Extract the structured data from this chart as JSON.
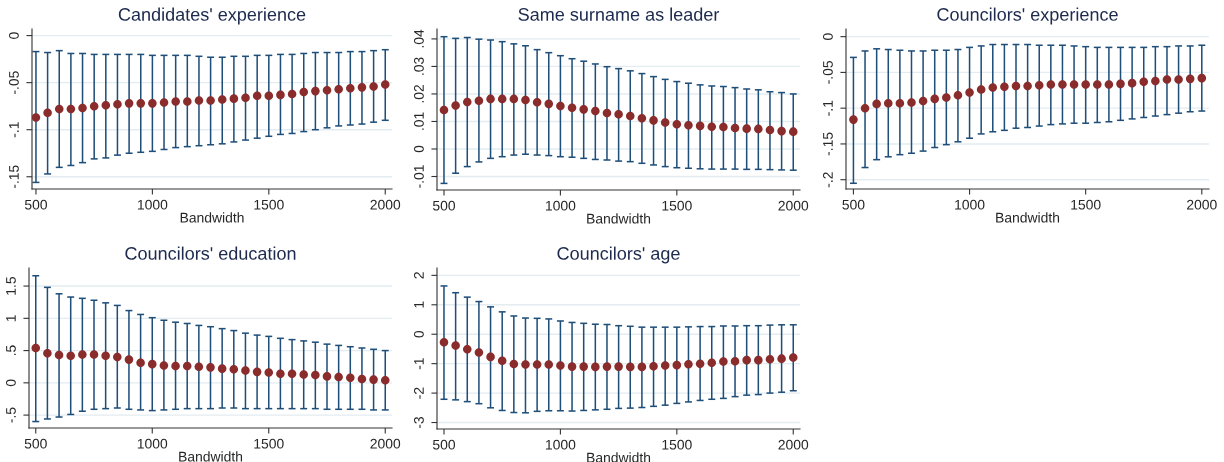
{
  "chart_data": [
    {
      "type": "scatter",
      "title": "Candidates' experience",
      "xlabel": "Bandwidth",
      "xlim": [
        483,
        2029
      ],
      "xticks": [
        500,
        1000,
        1500,
        2000
      ],
      "ylim": [
        -0.163,
        0.007
      ],
      "yticks": [
        {
          "value": -0.15,
          "label": "-.15"
        },
        {
          "value": -0.1,
          "label": "-.1"
        },
        {
          "value": -0.05,
          "label": "-.05"
        },
        0
      ],
      "grid": "y",
      "marker": "circle",
      "x": [
        500,
        550,
        600,
        650,
        700,
        750,
        800,
        850,
        900,
        950,
        1000,
        1050,
        1100,
        1150,
        1200,
        1250,
        1300,
        1350,
        1400,
        1450,
        1500,
        1550,
        1600,
        1650,
        1700,
        1750,
        1800,
        1850,
        1900,
        1950,
        2000
      ],
      "series": [
        {
          "color": "#8b2c2c",
          "values": [
            -0.087,
            -0.082,
            -0.078,
            -0.078,
            -0.077,
            -0.075,
            -0.074,
            -0.073,
            -0.072,
            -0.072,
            -0.072,
            -0.071,
            -0.07,
            -0.07,
            -0.069,
            -0.069,
            -0.068,
            -0.067,
            -0.066,
            -0.064,
            -0.064,
            -0.063,
            -0.062,
            -0.06,
            -0.059,
            -0.058,
            -0.057,
            -0.056,
            -0.055,
            -0.054,
            -0.052
          ],
          "errors": [
            [
              -0.156,
              -0.017
            ],
            [
              -0.147,
              -0.018
            ],
            [
              -0.14,
              -0.016
            ],
            [
              -0.138,
              -0.019
            ],
            [
              -0.135,
              -0.019
            ],
            [
              -0.131,
              -0.02
            ],
            [
              -0.13,
              -0.02
            ],
            [
              -0.127,
              -0.02
            ],
            [
              -0.125,
              -0.02
            ],
            [
              -0.124,
              -0.02
            ],
            [
              -0.123,
              -0.021
            ],
            [
              -0.121,
              -0.021
            ],
            [
              -0.119,
              -0.021
            ],
            [
              -0.118,
              -0.021
            ],
            [
              -0.117,
              -0.022
            ],
            [
              -0.116,
              -0.023
            ],
            [
              -0.115,
              -0.023
            ],
            [
              -0.113,
              -0.022
            ],
            [
              -0.111,
              -0.022
            ],
            [
              -0.109,
              -0.021
            ],
            [
              -0.107,
              -0.021
            ],
            [
              -0.105,
              -0.02
            ],
            [
              -0.104,
              -0.02
            ],
            [
              -0.102,
              -0.019
            ],
            [
              -0.1,
              -0.018
            ],
            [
              -0.098,
              -0.018
            ],
            [
              -0.096,
              -0.018
            ],
            [
              -0.095,
              -0.017
            ],
            [
              -0.094,
              -0.017
            ],
            [
              -0.092,
              -0.016
            ],
            [
              -0.09,
              -0.015
            ]
          ]
        }
      ]
    },
    {
      "type": "scatter",
      "title": "Same surname as leader",
      "xlabel": "Bandwidth",
      "xlim": [
        470,
        2029
      ],
      "xticks": [
        500,
        1000,
        1500,
        2000
      ],
      "ylim": [
        -0.0149,
        0.0436
      ],
      "yticks": [
        {
          "value": -0.01,
          "label": "-.01"
        },
        0,
        {
          "value": 0.01,
          "label": ".01"
        },
        {
          "value": 0.02,
          "label": ".02"
        },
        {
          "value": 0.03,
          "label": ".03"
        },
        {
          "value": 0.04,
          "label": ".04"
        }
      ],
      "grid": "y",
      "marker": "circle",
      "x": [
        500,
        550,
        600,
        650,
        700,
        750,
        800,
        850,
        900,
        950,
        1000,
        1050,
        1100,
        1150,
        1200,
        1250,
        1300,
        1350,
        1400,
        1450,
        1500,
        1550,
        1600,
        1650,
        1700,
        1750,
        1800,
        1850,
        1900,
        1950,
        2000
      ],
      "series": [
        {
          "color": "#8b2c2c",
          "values": [
            0.0142,
            0.0158,
            0.0171,
            0.0175,
            0.0182,
            0.0182,
            0.0182,
            0.0178,
            0.017,
            0.0164,
            0.0156,
            0.015,
            0.0144,
            0.0138,
            0.0131,
            0.0126,
            0.012,
            0.0112,
            0.0104,
            0.0096,
            0.009,
            0.0086,
            0.0084,
            0.0081,
            0.008,
            0.0076,
            0.0074,
            0.0073,
            0.0069,
            0.0065,
            0.0063
          ],
          "errors": [
            [
              -0.0125,
              0.0408
            ],
            [
              -0.0088,
              0.0402
            ],
            [
              -0.0064,
              0.0405
            ],
            [
              -0.0047,
              0.0399
            ],
            [
              -0.0034,
              0.0396
            ],
            [
              -0.0028,
              0.039
            ],
            [
              -0.0022,
              0.0382
            ],
            [
              -0.0019,
              0.0375
            ],
            [
              -0.0022,
              0.0361
            ],
            [
              -0.0024,
              0.035
            ],
            [
              -0.0028,
              0.0339
            ],
            [
              -0.003,
              0.0328
            ],
            [
              -0.0034,
              0.0319
            ],
            [
              -0.0038,
              0.0309
            ],
            [
              -0.004,
              0.0299
            ],
            [
              -0.0044,
              0.0292
            ],
            [
              -0.0046,
              0.0284
            ],
            [
              -0.0052,
              0.0274
            ],
            [
              -0.0058,
              0.0263
            ],
            [
              -0.0064,
              0.0253
            ],
            [
              -0.0068,
              0.0245
            ],
            [
              -0.007,
              0.0239
            ],
            [
              -0.0072,
              0.0233
            ],
            [
              -0.0073,
              0.0229
            ],
            [
              -0.0073,
              0.0227
            ],
            [
              -0.0073,
              0.0223
            ],
            [
              -0.0074,
              0.0218
            ],
            [
              -0.0074,
              0.0215
            ],
            [
              -0.0075,
              0.0208
            ],
            [
              -0.0076,
              0.0205
            ],
            [
              -0.0077,
              0.02
            ]
          ]
        }
      ]
    },
    {
      "type": "scatter",
      "title": "Councilors' experience",
      "xlabel": "Bandwidth",
      "xlim": [
        468,
        2031
      ],
      "xticks": [
        500,
        1000,
        1500,
        2000
      ],
      "ylim": [
        -0.213,
        0.0107
      ],
      "yticks": [
        {
          "value": -0.2,
          "label": "-.2"
        },
        {
          "value": -0.15,
          "label": "-.15"
        },
        {
          "value": -0.1,
          "label": "-.1"
        },
        {
          "value": -0.05,
          "label": "-.05"
        },
        0
      ],
      "grid": "y",
      "marker": "circle",
      "x": [
        500,
        550,
        600,
        650,
        700,
        750,
        800,
        850,
        900,
        950,
        1000,
        1050,
        1100,
        1150,
        1200,
        1250,
        1300,
        1350,
        1400,
        1450,
        1500,
        1550,
        1600,
        1650,
        1700,
        1750,
        1800,
        1850,
        1900,
        1950,
        2000
      ],
      "series": [
        {
          "color": "#8b2c2c",
          "values": [
            -0.116,
            -0.1,
            -0.094,
            -0.093,
            -0.093,
            -0.092,
            -0.09,
            -0.087,
            -0.085,
            -0.082,
            -0.078,
            -0.074,
            -0.071,
            -0.07,
            -0.069,
            -0.069,
            -0.068,
            -0.067,
            -0.067,
            -0.067,
            -0.067,
            -0.067,
            -0.067,
            -0.066,
            -0.065,
            -0.063,
            -0.062,
            -0.06,
            -0.06,
            -0.059,
            -0.058
          ],
          "errors": [
            [
              -0.205,
              -0.029
            ],
            [
              -0.183,
              -0.02
            ],
            [
              -0.172,
              -0.017
            ],
            [
              -0.168,
              -0.018
            ],
            [
              -0.165,
              -0.019
            ],
            [
              -0.163,
              -0.02
            ],
            [
              -0.16,
              -0.02
            ],
            [
              -0.155,
              -0.019
            ],
            [
              -0.151,
              -0.019
            ],
            [
              -0.147,
              -0.018
            ],
            [
              -0.142,
              -0.015
            ],
            [
              -0.136,
              -0.013
            ],
            [
              -0.133,
              -0.011
            ],
            [
              -0.131,
              -0.011
            ],
            [
              -0.128,
              -0.011
            ],
            [
              -0.127,
              -0.011
            ],
            [
              -0.125,
              -0.012
            ],
            [
              -0.123,
              -0.012
            ],
            [
              -0.122,
              -0.012
            ],
            [
              -0.121,
              -0.013
            ],
            [
              -0.121,
              -0.014
            ],
            [
              -0.12,
              -0.015
            ],
            [
              -0.119,
              -0.015
            ],
            [
              -0.117,
              -0.015
            ],
            [
              -0.115,
              -0.015
            ],
            [
              -0.113,
              -0.015
            ],
            [
              -0.111,
              -0.014
            ],
            [
              -0.109,
              -0.014
            ],
            [
              -0.107,
              -0.013
            ],
            [
              -0.105,
              -0.013
            ],
            [
              -0.104,
              -0.012
            ]
          ]
        }
      ]
    },
    {
      "type": "scatter",
      "title": "Councilors' education",
      "xlabel": "Bandwidth",
      "xlim": [
        471,
        2029
      ],
      "xticks": [
        500,
        1000,
        1500,
        2000
      ],
      "ylim": [
        -0.7,
        1.78
      ],
      "yticks": [
        {
          "value": -0.5,
          "label": "-.5"
        },
        0,
        {
          "value": 0.5,
          "label": ".5"
        },
        1,
        1.5
      ],
      "grid": "y",
      "marker": "circle",
      "x": [
        500,
        550,
        600,
        650,
        700,
        750,
        800,
        850,
        900,
        950,
        1000,
        1050,
        1100,
        1150,
        1200,
        1250,
        1300,
        1350,
        1400,
        1450,
        1500,
        1550,
        1600,
        1650,
        1700,
        1750,
        1800,
        1850,
        1900,
        1950,
        2000
      ],
      "series": [
        {
          "color": "#8b2c2c",
          "values": [
            0.54,
            0.46,
            0.43,
            0.42,
            0.44,
            0.44,
            0.42,
            0.4,
            0.36,
            0.31,
            0.29,
            0.27,
            0.26,
            0.26,
            0.25,
            0.24,
            0.22,
            0.21,
            0.19,
            0.17,
            0.16,
            0.14,
            0.14,
            0.13,
            0.12,
            0.1,
            0.09,
            0.08,
            0.06,
            0.05,
            0.04
          ],
          "errors": [
            [
              -0.6,
              1.66
            ],
            [
              -0.56,
              1.48
            ],
            [
              -0.53,
              1.38
            ],
            [
              -0.49,
              1.33
            ],
            [
              -0.44,
              1.31
            ],
            [
              -0.41,
              1.28
            ],
            [
              -0.4,
              1.24
            ],
            [
              -0.39,
              1.2
            ],
            [
              -0.41,
              1.12
            ],
            [
              -0.42,
              1.06
            ],
            [
              -0.43,
              1.01
            ],
            [
              -0.42,
              0.97
            ],
            [
              -0.41,
              0.94
            ],
            [
              -0.4,
              0.92
            ],
            [
              -0.4,
              0.89
            ],
            [
              -0.4,
              0.87
            ],
            [
              -0.39,
              0.84
            ],
            [
              -0.39,
              0.81
            ],
            [
              -0.4,
              0.77
            ],
            [
              -0.4,
              0.74
            ],
            [
              -0.4,
              0.72
            ],
            [
              -0.4,
              0.69
            ],
            [
              -0.4,
              0.67
            ],
            [
              -0.4,
              0.65
            ],
            [
              -0.4,
              0.63
            ],
            [
              -0.41,
              0.6
            ],
            [
              -0.41,
              0.58
            ],
            [
              -0.41,
              0.56
            ],
            [
              -0.41,
              0.54
            ],
            [
              -0.42,
              0.52
            ],
            [
              -0.42,
              0.5
            ]
          ]
        }
      ]
    },
    {
      "type": "scatter",
      "title": "Councilors' age",
      "xlabel": "Bandwidth",
      "xlim": [
        470,
        2029
      ],
      "xticks": [
        500,
        1000,
        1500,
        2000
      ],
      "ylim": [
        -3.22,
        2.25
      ],
      "yticks": [
        -3,
        -2,
        -1,
        0,
        1,
        2
      ],
      "grid": "y",
      "marker": "circle",
      "x": [
        500,
        550,
        600,
        650,
        700,
        750,
        800,
        850,
        900,
        950,
        1000,
        1050,
        1100,
        1150,
        1200,
        1250,
        1300,
        1350,
        1400,
        1450,
        1500,
        1550,
        1600,
        1650,
        1700,
        1750,
        1800,
        1850,
        1900,
        1950,
        2000
      ],
      "series": [
        {
          "color": "#8b2c2c",
          "values": [
            -0.27,
            -0.38,
            -0.51,
            -0.62,
            -0.77,
            -0.9,
            -1.01,
            -1.03,
            -1.03,
            -1.03,
            -1.06,
            -1.1,
            -1.1,
            -1.11,
            -1.1,
            -1.1,
            -1.11,
            -1.11,
            -1.09,
            -1.06,
            -1.05,
            -1.02,
            -1.0,
            -0.97,
            -0.93,
            -0.92,
            -0.88,
            -0.88,
            -0.85,
            -0.83,
            -0.79
          ],
          "errors": [
            [
              -2.21,
              1.64
            ],
            [
              -2.23,
              1.41
            ],
            [
              -2.29,
              1.26
            ],
            [
              -2.36,
              1.11
            ],
            [
              -2.5,
              0.93
            ],
            [
              -2.59,
              0.76
            ],
            [
              -2.66,
              0.62
            ],
            [
              -2.67,
              0.55
            ],
            [
              -2.62,
              0.54
            ],
            [
              -2.6,
              0.52
            ],
            [
              -2.6,
              0.45
            ],
            [
              -2.61,
              0.4
            ],
            [
              -2.59,
              0.37
            ],
            [
              -2.57,
              0.34
            ],
            [
              -2.55,
              0.33
            ],
            [
              -2.52,
              0.29
            ],
            [
              -2.51,
              0.27
            ],
            [
              -2.49,
              0.24
            ],
            [
              -2.45,
              0.24
            ],
            [
              -2.41,
              0.24
            ],
            [
              -2.35,
              0.24
            ],
            [
              -2.3,
              0.25
            ],
            [
              -2.25,
              0.26
            ],
            [
              -2.21,
              0.26
            ],
            [
              -2.18,
              0.28
            ],
            [
              -2.12,
              0.28
            ],
            [
              -2.07,
              0.29
            ],
            [
              -2.05,
              0.29
            ],
            [
              -2.0,
              0.31
            ],
            [
              -1.97,
              0.32
            ],
            [
              -1.92,
              0.32
            ]
          ]
        }
      ]
    }
  ]
}
